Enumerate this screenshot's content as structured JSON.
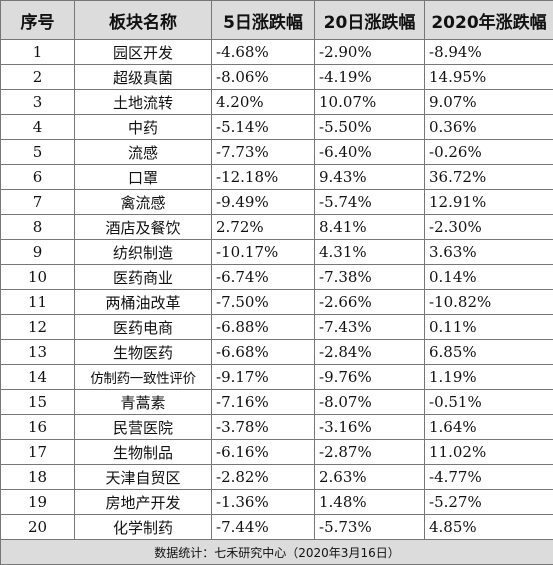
{
  "table": {
    "headers": [
      "序号",
      "板块名称",
      "5日涨跌幅",
      "20日涨跌幅",
      "2020年涨跌幅"
    ],
    "rows": [
      [
        "1",
        "园区开发",
        "-4.68%",
        "-2.90%",
        "-8.94%"
      ],
      [
        "2",
        "超级真菌",
        "-8.06%",
        "-4.19%",
        "14.95%"
      ],
      [
        "3",
        "土地流转",
        "4.20%",
        "10.07%",
        "9.07%"
      ],
      [
        "4",
        "中药",
        "-5.14%",
        "-5.50%",
        "0.36%"
      ],
      [
        "5",
        "流感",
        "-7.73%",
        "-6.40%",
        "-0.26%"
      ],
      [
        "6",
        "口罩",
        "-12.18%",
        "9.43%",
        "36.72%"
      ],
      [
        "7",
        "禽流感",
        "-9.49%",
        "-5.74%",
        "12.91%"
      ],
      [
        "8",
        "酒店及餐饮",
        "2.72%",
        "8.41%",
        "-2.30%"
      ],
      [
        "9",
        "纺织制造",
        "-10.17%",
        "4.31%",
        "3.63%"
      ],
      [
        "10",
        "医药商业",
        "-6.74%",
        "-7.38%",
        "0.14%"
      ],
      [
        "11",
        "两桶油改革",
        "-7.50%",
        "-2.66%",
        "-10.82%"
      ],
      [
        "12",
        "医药电商",
        "-6.88%",
        "-7.43%",
        "0.11%"
      ],
      [
        "13",
        "生物医药",
        "-6.68%",
        "-2.84%",
        "6.85%"
      ],
      [
        "14",
        "仿制药一致性评价",
        "-9.17%",
        "-9.76%",
        "1.19%"
      ],
      [
        "15",
        "青蒿素",
        "-7.16%",
        "-8.07%",
        "-0.51%"
      ],
      [
        "16",
        "民营医院",
        "-3.78%",
        "-3.16%",
        "1.64%"
      ],
      [
        "17",
        "生物制品",
        "-6.16%",
        "-2.87%",
        "11.02%"
      ],
      [
        "18",
        "天津自贸区",
        "-2.82%",
        "2.63%",
        "-4.77%"
      ],
      [
        "19",
        "房地产开发",
        "-1.36%",
        "1.48%",
        "-5.27%"
      ],
      [
        "20",
        "化学制药",
        "-7.44%",
        "-5.73%",
        "4.85%"
      ]
    ],
    "footer": "数据统计：七禾研究中心（2020年3月16日）"
  }
}
